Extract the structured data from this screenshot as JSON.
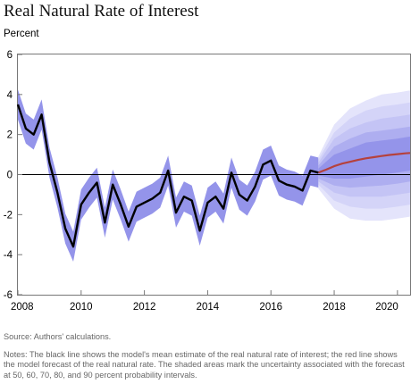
{
  "title": "Real Natural Rate of Interest",
  "source": "Source: Authors' calculations.",
  "notes": "Notes: The black line shows the model's mean estimate of the real natural rate of interest; the red line shows the model forecast of the real natural rate. The shaded areas mark the uncertainty associated with the forecast at 50, 60, 70, 80, and 90 percent probability intervals.",
  "chart_data": {
    "type": "line",
    "title": "Real Natural Rate of Interest",
    "ylabel": "Percent",
    "xlabel": "",
    "xlim": [
      2008,
      2020.4
    ],
    "ylim": [
      -6,
      6
    ],
    "x_ticks": [
      2008,
      2010,
      2012,
      2014,
      2016,
      2018,
      2020
    ],
    "y_ticks": [
      -6,
      -4,
      -2,
      0,
      2,
      4,
      6
    ],
    "grid": false,
    "colors": {
      "estimate": "#000000",
      "forecast": "#b5413d",
      "bands": [
        "#e4e4fb",
        "#d4d4f8",
        "#c4c4f5",
        "#aeaef0",
        "#9494ea"
      ]
    },
    "series": [
      {
        "role": "mean estimate",
        "x": [
          2008.0,
          2008.25,
          2008.5,
          2008.75,
          2009.0,
          2009.25,
          2009.5,
          2009.75,
          2010.0,
          2010.25,
          2010.5,
          2010.75,
          2011.0,
          2011.25,
          2011.5,
          2011.75,
          2012.0,
          2012.25,
          2012.5,
          2012.75,
          2013.0,
          2013.25,
          2013.5,
          2013.75,
          2014.0,
          2014.25,
          2014.5,
          2014.75,
          2015.0,
          2015.25,
          2015.5,
          2015.75,
          2016.0,
          2016.25,
          2016.5,
          2016.75,
          2017.0,
          2017.25,
          2017.5
        ],
        "values": [
          3.5,
          2.3,
          2.0,
          3.0,
          0.6,
          -0.9,
          -2.7,
          -3.6,
          -1.5,
          -0.9,
          -0.4,
          -2.4,
          -0.5,
          -1.5,
          -2.6,
          -1.6,
          -1.4,
          -1.2,
          -0.9,
          0.2,
          -1.9,
          -1.1,
          -1.3,
          -2.8,
          -1.4,
          -1.1,
          -1.7,
          0.1,
          -1.0,
          -1.3,
          -0.6,
          0.5,
          0.7,
          -0.3,
          -0.5,
          -0.6,
          -0.8,
          0.2,
          0.1
        ]
      },
      {
        "role": "forecast",
        "x": [
          2017.5,
          2017.75,
          2018.0,
          2018.25,
          2018.5,
          2018.75,
          2019.0,
          2019.25,
          2019.5,
          2019.75,
          2020.0,
          2020.25,
          2020.4
        ],
        "values": [
          0.1,
          0.25,
          0.42,
          0.55,
          0.64,
          0.73,
          0.81,
          0.87,
          0.93,
          0.98,
          1.02,
          1.06,
          1.08
        ]
      }
    ],
    "intervals": {
      "levels": [
        "90",
        "80",
        "70",
        "60",
        "50"
      ],
      "x": [
        2017.5,
        2018.0,
        2018.5,
        2019.0,
        2019.5,
        2020.0,
        2020.4
      ],
      "lower": [
        [
          -0.7,
          -1.7,
          -2.2,
          -2.3,
          -2.3,
          -2.2,
          -2.1
        ],
        [
          -0.5,
          -1.3,
          -1.6,
          -1.7,
          -1.7,
          -1.6,
          -1.5
        ],
        [
          -0.35,
          -0.9,
          -1.1,
          -1.1,
          -1.1,
          -1.0,
          -0.9
        ],
        [
          -0.2,
          -0.55,
          -0.65,
          -0.6,
          -0.55,
          -0.45,
          -0.35
        ],
        [
          -0.05,
          -0.2,
          -0.2,
          -0.1,
          0.0,
          0.1,
          0.2
        ]
      ],
      "upper": [
        [
          0.9,
          2.5,
          3.3,
          3.7,
          4.0,
          4.1,
          4.2
        ],
        [
          0.75,
          2.1,
          2.8,
          3.2,
          3.4,
          3.5,
          3.6
        ],
        [
          0.6,
          1.8,
          2.3,
          2.6,
          2.8,
          2.9,
          3.0
        ],
        [
          0.45,
          1.4,
          1.8,
          2.1,
          2.2,
          2.3,
          2.4
        ],
        [
          0.3,
          1.0,
          1.3,
          1.6,
          1.7,
          1.8,
          1.9
        ]
      ]
    },
    "estimate_band_halfwidth": 0.75
  }
}
